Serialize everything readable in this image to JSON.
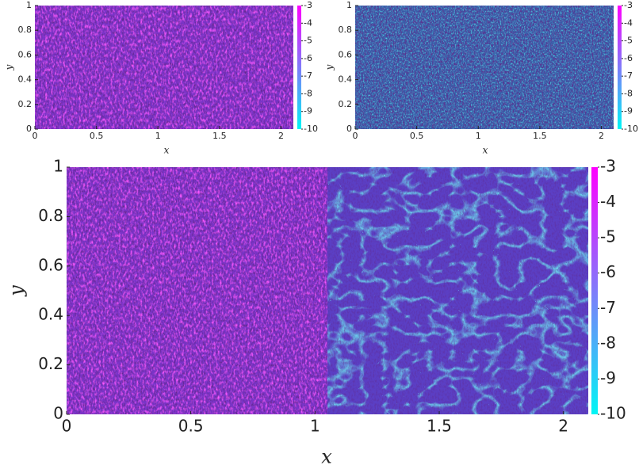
{
  "chart_data": [
    {
      "type": "heatmap",
      "xlabel": "x",
      "ylabel": "y",
      "xlim": [
        0,
        2.1
      ],
      "ylim": [
        0,
        1
      ],
      "xticks": [
        0,
        0.5,
        1,
        1.5,
        2
      ],
      "yticks": [
        0,
        0.2,
        0.4,
        0.6,
        0.8,
        1
      ],
      "clim": [
        -10,
        -3
      ],
      "cticks": [
        -10,
        -9,
        -8,
        -7,
        -6,
        -5,
        -4,
        -3
      ],
      "colormap": [
        "#00f5f5",
        "#ff00ff"
      ]
    },
    {
      "type": "heatmap",
      "xlabel": "x",
      "ylabel": "y",
      "xlim": [
        0,
        2.1
      ],
      "ylim": [
        0,
        1
      ],
      "xticks": [
        0,
        0.5,
        1,
        1.5,
        2
      ],
      "yticks": [
        0,
        0.2,
        0.4,
        0.6,
        0.8,
        1
      ],
      "clim": [
        -10,
        -3
      ],
      "cticks": [
        -10,
        -9,
        -8,
        -7,
        -6,
        -5,
        -4,
        -3
      ],
      "colormap": [
        "#00f5f5",
        "#ff00ff"
      ]
    },
    {
      "type": "heatmap",
      "xlabel": "x",
      "ylabel": "y",
      "xlim": [
        0,
        2.1
      ],
      "ylim": [
        0,
        1
      ],
      "xticks": [
        0,
        0.5,
        1,
        1.5,
        2
      ],
      "yticks": [
        0,
        0.2,
        0.4,
        0.6,
        0.8,
        1
      ],
      "clim": [
        -10,
        -3
      ],
      "cticks": [
        -10,
        -9,
        -8,
        -7,
        -6,
        -5,
        -4,
        -3
      ],
      "colormap": [
        "#00f5f5",
        "#ff00ff"
      ]
    }
  ]
}
